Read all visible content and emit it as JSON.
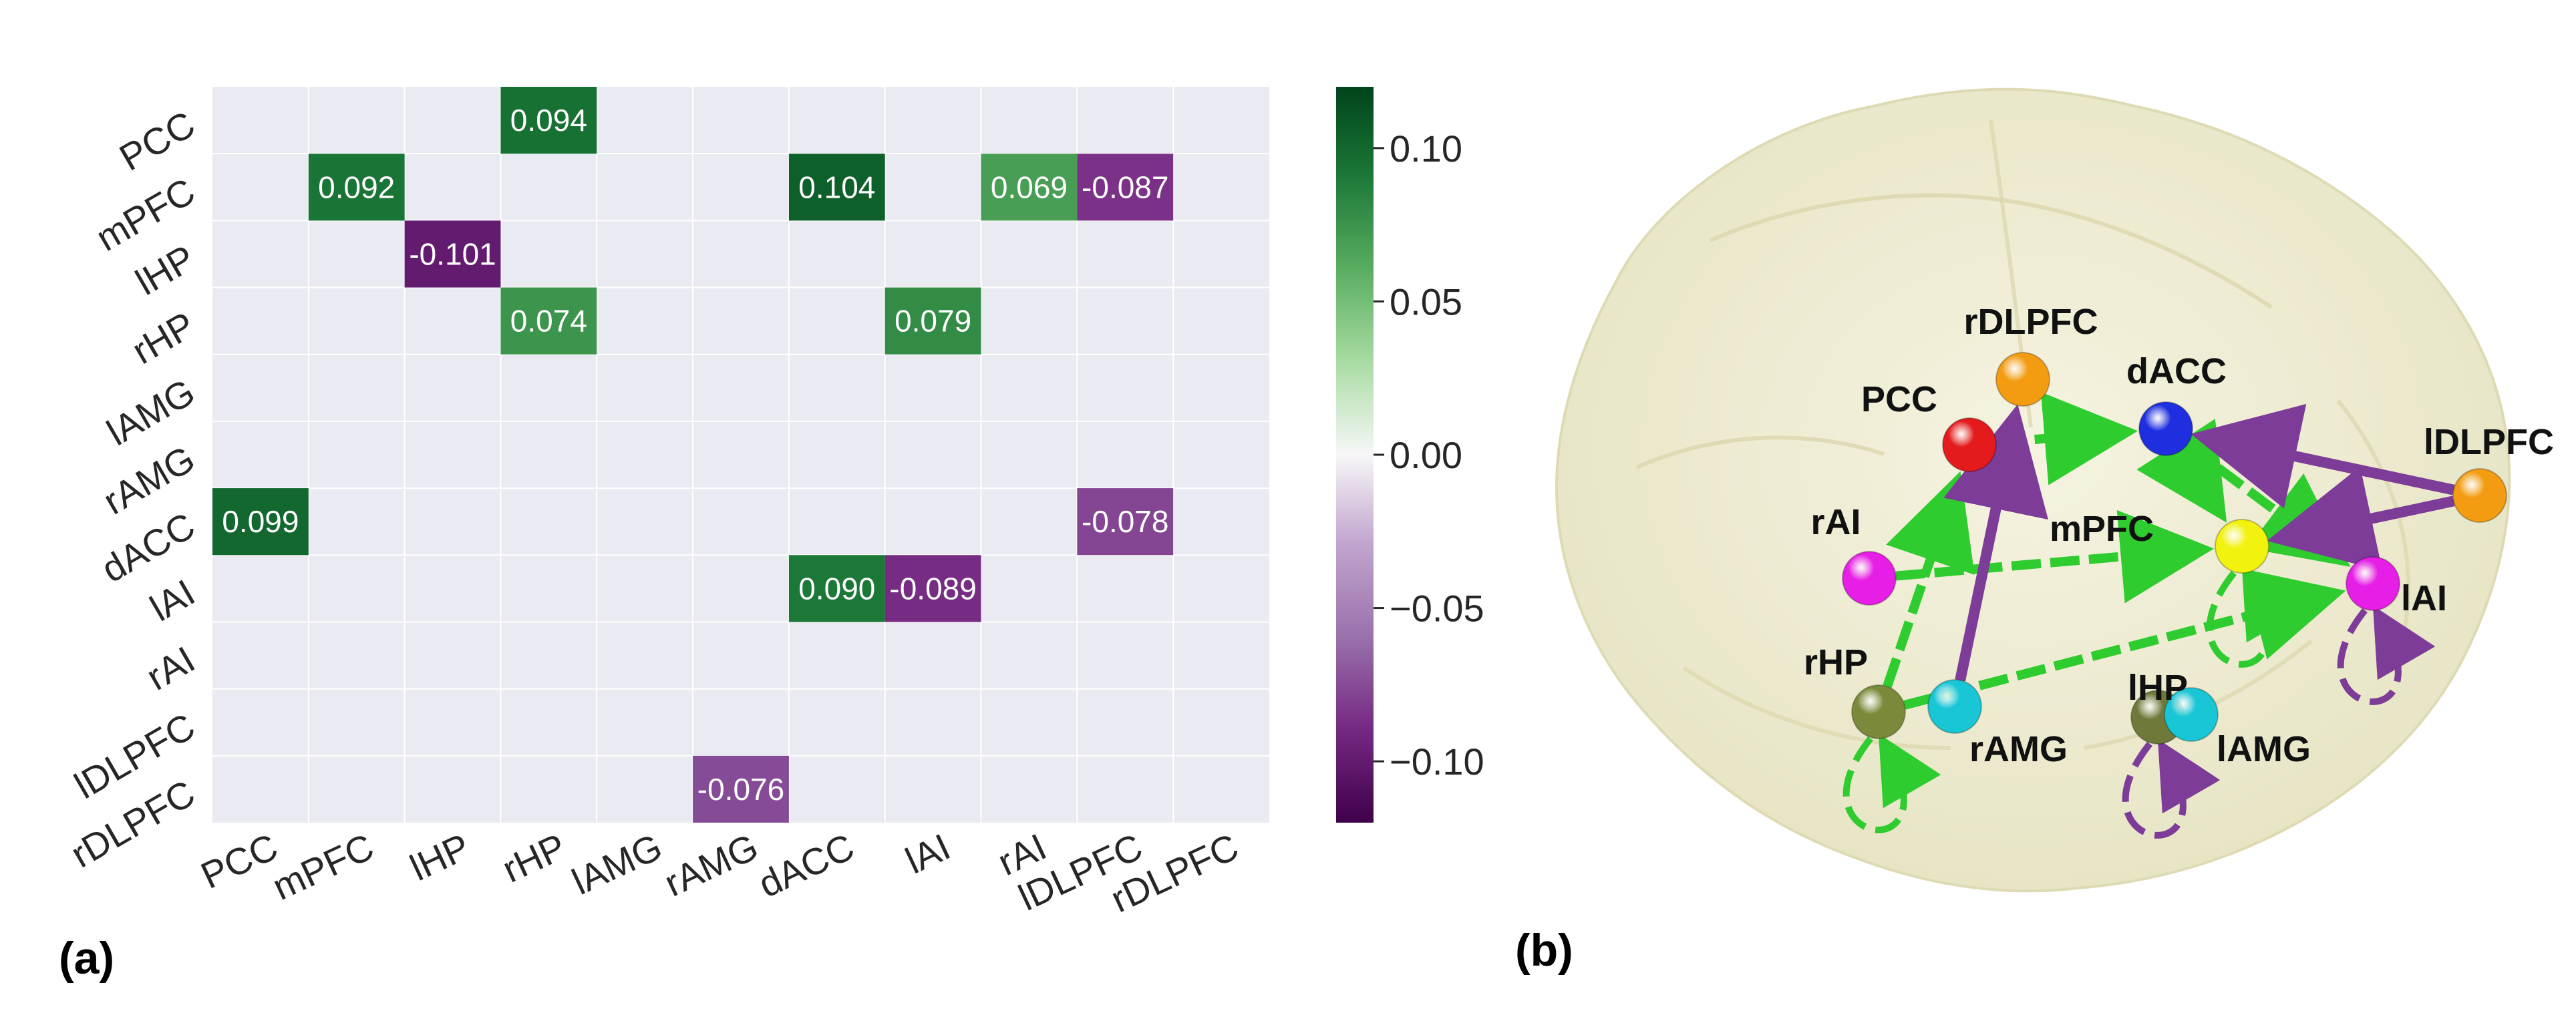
{
  "panels": {
    "a": "(a)",
    "b": "(b)"
  },
  "colors": {
    "grid_background": "#EAEAF2",
    "positive_strong": "#00441B",
    "neutral": "#F7F7F7",
    "negative_strong": "#40004B",
    "brain_fill": "#EEECCF",
    "excitatory_edge": "#2ECC2E",
    "inhibitory_edge": "#7D3C98"
  },
  "chart_data": [
    {
      "type": "heatmap",
      "rows": [
        "PCC",
        "mPFC",
        "lHP",
        "rHP",
        "lAMG",
        "rAMG",
        "dACC",
        "lAI",
        "rAI",
        "lDLPFC",
        "rDLPFC"
      ],
      "columns": [
        "PCC",
        "mPFC",
        "lHP",
        "rHP",
        "lAMG",
        "rAMG",
        "dACC",
        "lAI",
        "rAI",
        "lDLPFC",
        "rDLPFC"
      ],
      "cells": [
        {
          "row": "PCC",
          "col": "rHP",
          "value": 0.094,
          "label": "0.094"
        },
        {
          "row": "mPFC",
          "col": "mPFC",
          "value": 0.092,
          "label": "0.092"
        },
        {
          "row": "mPFC",
          "col": "dACC",
          "value": 0.104,
          "label": "0.104"
        },
        {
          "row": "mPFC",
          "col": "rAI",
          "value": 0.069,
          "label": "0.069"
        },
        {
          "row": "mPFC",
          "col": "lDLPFC",
          "value": -0.087,
          "label": "-0.087"
        },
        {
          "row": "lHP",
          "col": "lHP",
          "value": -0.101,
          "label": "-0.101"
        },
        {
          "row": "rHP",
          "col": "rHP",
          "value": 0.074,
          "label": "0.074"
        },
        {
          "row": "rHP",
          "col": "lAI",
          "value": 0.079,
          "label": "0.079"
        },
        {
          "row": "dACC",
          "col": "PCC",
          "value": 0.099,
          "label": "0.099"
        },
        {
          "row": "dACC",
          "col": "lDLPFC",
          "value": -0.078,
          "label": "-0.078"
        },
        {
          "row": "lAI",
          "col": "dACC",
          "value": 0.09,
          "label": "0.090"
        },
        {
          "row": "lAI",
          "col": "lAI",
          "value": -0.089,
          "label": "-0.089"
        },
        {
          "row": "rDLPFC",
          "col": "rAMG",
          "value": -0.076,
          "label": "-0.076"
        }
      ],
      "colorbar": {
        "range": [
          -0.12,
          0.12
        ],
        "ticks": [
          {
            "value": 0.1,
            "label": "0.10"
          },
          {
            "value": 0.05,
            "label": "0.05"
          },
          {
            "value": 0.0,
            "label": "0.00"
          },
          {
            "value": -0.05,
            "label": "−0.05"
          },
          {
            "value": -0.1,
            "label": "−0.10"
          }
        ],
        "colormap": "PRGn"
      },
      "grid": true
    },
    {
      "type": "network",
      "nodes": [
        {
          "id": "rDLPFC",
          "label": "rDLPFC",
          "color": "#F39C12"
        },
        {
          "id": "PCC",
          "label": "PCC",
          "color": "#E41A1C"
        },
        {
          "id": "dACC",
          "label": "dACC",
          "color": "#1F2FE0"
        },
        {
          "id": "lDLPFC",
          "label": "lDLPFC",
          "color": "#F39C12"
        },
        {
          "id": "rAI",
          "label": "rAI",
          "color": "#E61EE6"
        },
        {
          "id": "mPFC",
          "label": "mPFC",
          "color": "#F2F20F"
        },
        {
          "id": "lAI",
          "label": "lAI",
          "color": "#E61EE6"
        },
        {
          "id": "rHP",
          "label": "rHP",
          "color": "#7A8A3A"
        },
        {
          "id": "rAMG",
          "label": "rAMG",
          "color": "#18C6D6"
        },
        {
          "id": "lHP",
          "label": "lHP",
          "color": "#6F7A3A"
        },
        {
          "id": "lAMG",
          "label": "lAMG",
          "color": "#18C6D6"
        }
      ],
      "edges": [
        {
          "from": "PCC",
          "to": "dACC",
          "sign": "positive",
          "style": "dashed"
        },
        {
          "from": "dACC",
          "to": "mPFC",
          "sign": "positive",
          "style": "dashed"
        },
        {
          "from": "dACC",
          "to": "lAI",
          "sign": "positive",
          "style": "dashed"
        },
        {
          "from": "rHP",
          "to": "PCC",
          "sign": "positive",
          "style": "dashed"
        },
        {
          "from": "rAI",
          "to": "mPFC",
          "sign": "positive",
          "style": "dashed"
        },
        {
          "from": "rHP",
          "to": "lAI",
          "sign": "positive",
          "style": "dashed"
        },
        {
          "from": "lDLPFC",
          "to": "dACC",
          "sign": "negative",
          "style": "solid"
        },
        {
          "from": "lDLPFC",
          "to": "mPFC",
          "sign": "negative",
          "style": "solid"
        },
        {
          "from": "rAMG",
          "to": "rDLPFC",
          "sign": "negative",
          "style": "solid"
        },
        {
          "from": "mPFC",
          "to": "mPFC",
          "sign": "positive",
          "style": "loop"
        },
        {
          "from": "rHP",
          "to": "rHP",
          "sign": "positive",
          "style": "loop"
        },
        {
          "from": "lAI",
          "to": "lAI",
          "sign": "negative",
          "style": "loop"
        },
        {
          "from": "lHP",
          "to": "lHP",
          "sign": "negative",
          "style": "loop"
        }
      ]
    }
  ]
}
